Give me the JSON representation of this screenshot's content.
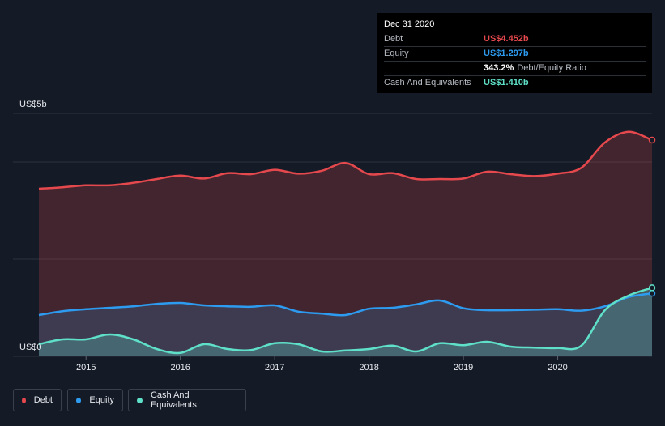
{
  "tooltip": {
    "date": "Dec 31 2020",
    "rows": [
      {
        "label": "Debt",
        "value": "US$4.452b",
        "color": "#e5484d"
      },
      {
        "label": "Equity",
        "value": "US$1.297b",
        "color": "#2d9bf0"
      },
      {
        "ratio": "343.2%",
        "ratio_label": "Debt/Equity Ratio"
      },
      {
        "label": "Cash And Equivalents",
        "value": "US$1.410b",
        "color": "#5fe0c8"
      }
    ]
  },
  "legend": [
    {
      "label": "Debt",
      "color": "#e5484d"
    },
    {
      "label": "Equity",
      "color": "#2d9bf0"
    },
    {
      "label": "Cash And Equivalents",
      "color": "#5fe0c8"
    }
  ],
  "chart_data": {
    "type": "area",
    "y_unit_labels": {
      "top": "US$5b",
      "bottom": "US$0"
    },
    "ylim": [
      0,
      5
    ],
    "xlim": [
      2014.5,
      2021.0
    ],
    "x_ticks": [
      "2015",
      "2016",
      "2017",
      "2018",
      "2019",
      "2020"
    ],
    "series": [
      {
        "name": "Debt",
        "color": "#e5484d",
        "x": [
          2014.5,
          2014.75,
          2015.0,
          2015.25,
          2015.5,
          2015.75,
          2016.0,
          2016.25,
          2016.5,
          2016.75,
          2017.0,
          2017.25,
          2017.5,
          2017.75,
          2018.0,
          2018.25,
          2018.5,
          2018.75,
          2019.0,
          2019.25,
          2019.5,
          2019.75,
          2020.0,
          2020.25,
          2020.5,
          2020.75,
          2021.0
        ],
        "values": [
          3.45,
          3.48,
          3.52,
          3.52,
          3.57,
          3.65,
          3.72,
          3.66,
          3.77,
          3.75,
          3.84,
          3.76,
          3.82,
          3.98,
          3.75,
          3.77,
          3.65,
          3.65,
          3.66,
          3.8,
          3.75,
          3.71,
          3.76,
          3.88,
          4.4,
          4.62,
          4.45
        ]
      },
      {
        "name": "Equity",
        "color": "#2d9bf0",
        "x": [
          2014.5,
          2014.75,
          2015.0,
          2015.25,
          2015.5,
          2015.75,
          2016.0,
          2016.25,
          2016.5,
          2016.75,
          2017.0,
          2017.25,
          2017.5,
          2017.75,
          2018.0,
          2018.25,
          2018.5,
          2018.75,
          2019.0,
          2019.25,
          2019.5,
          2019.75,
          2020.0,
          2020.25,
          2020.5,
          2020.75,
          2021.0
        ],
        "values": [
          0.85,
          0.93,
          0.97,
          1.0,
          1.03,
          1.08,
          1.1,
          1.05,
          1.03,
          1.02,
          1.05,
          0.92,
          0.88,
          0.85,
          0.98,
          1.0,
          1.07,
          1.15,
          0.99,
          0.95,
          0.95,
          0.96,
          0.97,
          0.94,
          1.03,
          1.22,
          1.297
        ]
      },
      {
        "name": "Cash And Equivalents",
        "color": "#5fe0c8",
        "x": [
          2014.5,
          2014.75,
          2015.0,
          2015.25,
          2015.5,
          2015.75,
          2016.0,
          2016.25,
          2016.5,
          2016.75,
          2017.0,
          2017.25,
          2017.5,
          2017.75,
          2018.0,
          2018.25,
          2018.5,
          2018.75,
          2019.0,
          2019.25,
          2019.5,
          2019.75,
          2020.0,
          2020.25,
          2020.5,
          2020.75,
          2021.0
        ],
        "values": [
          0.25,
          0.35,
          0.35,
          0.45,
          0.35,
          0.15,
          0.07,
          0.25,
          0.15,
          0.13,
          0.27,
          0.25,
          0.1,
          0.12,
          0.15,
          0.22,
          0.1,
          0.27,
          0.23,
          0.3,
          0.2,
          0.18,
          0.17,
          0.22,
          0.95,
          1.25,
          1.41
        ]
      }
    ]
  }
}
